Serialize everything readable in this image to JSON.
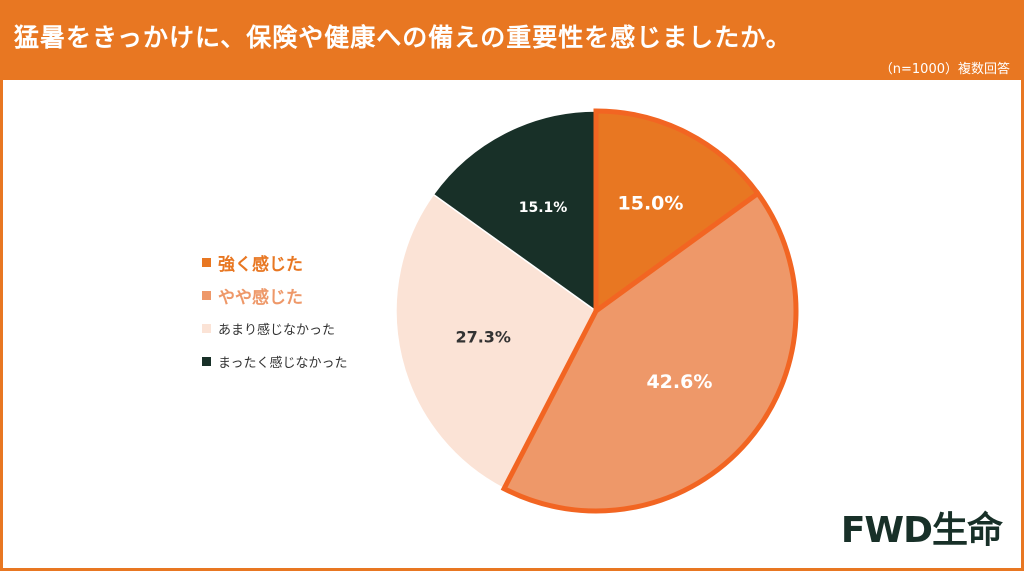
{
  "header": {
    "title": "猛暑をきっかけに、保険や健康への備えの重要性を感じましたか。",
    "subtitle": "（n=1000）複数回答"
  },
  "colors": {
    "accent": "#e87722",
    "highlight_border": "#f26522",
    "dark": "#183028"
  },
  "chart_data": {
    "type": "pie",
    "categories": [
      "強く感じた",
      "やや感じた",
      "あまり感じなかった",
      "まったく感じなかった"
    ],
    "values": [
      15.0,
      42.6,
      27.3,
      15.1
    ],
    "labels": [
      "15.0%",
      "42.6%",
      "27.3%",
      "15.1%"
    ],
    "colors": [
      "#e87722",
      "#ee9869",
      "#fbe3d6",
      "#183028"
    ],
    "label_colors": [
      "#ffffff",
      "#ffffff",
      "#333333",
      "#ffffff"
    ],
    "start": "12 o'clock, clockwise",
    "legend_position": "left",
    "highlighted": [
      "強く感じた",
      "やや感じた"
    ]
  },
  "logo": {
    "text": "FWD生命"
  }
}
